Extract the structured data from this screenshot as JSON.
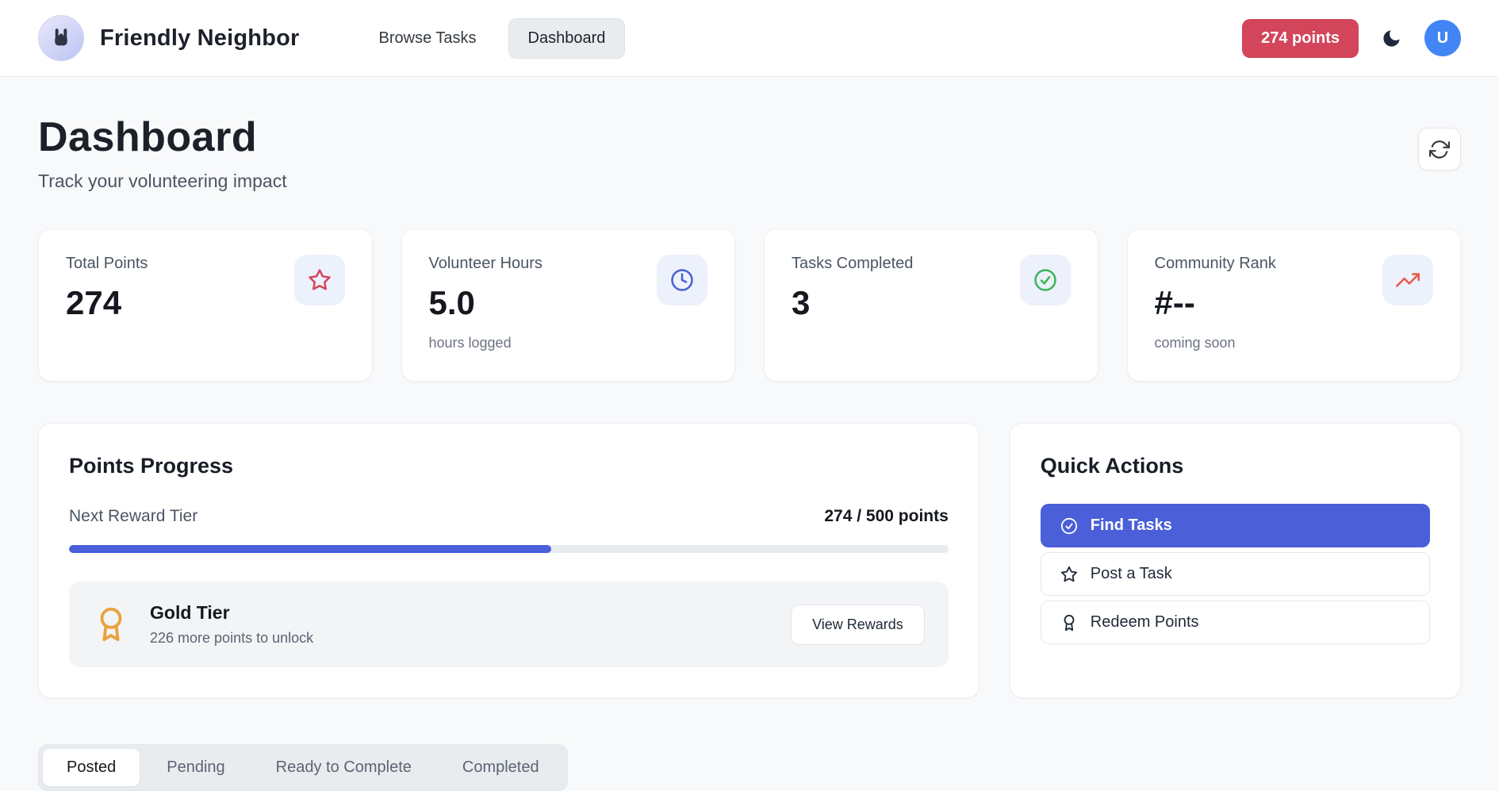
{
  "header": {
    "brand": "Friendly Neighbor",
    "logo_icon": "rock-hand",
    "nav": [
      {
        "label": "Browse Tasks",
        "active": false
      },
      {
        "label": "Dashboard",
        "active": true
      }
    ],
    "points_badge": "274 points",
    "theme_toggle_icon": "moon",
    "avatar_initial": "U"
  },
  "page": {
    "title": "Dashboard",
    "subtitle": "Track your volunteering impact",
    "refresh_icon": "refresh"
  },
  "stats": [
    {
      "label": "Total Points",
      "value": "274",
      "sub": "",
      "icon": "star-icon"
    },
    {
      "label": "Volunteer Hours",
      "value": "5.0",
      "sub": "hours logged",
      "icon": "clock-icon"
    },
    {
      "label": "Tasks Completed",
      "value": "3",
      "sub": "",
      "icon": "check-circle-icon"
    },
    {
      "label": "Community Rank",
      "value": "#--",
      "sub": "coming soon",
      "icon": "trending-up-icon"
    }
  ],
  "points_progress": {
    "title": "Points Progress",
    "tier_label": "Next Reward Tier",
    "points_text": "274 / 500 points",
    "points_current": 274,
    "points_target": 500,
    "progress_percent": 54.8,
    "reward": {
      "icon": "award-icon",
      "name": "Gold Tier",
      "subtitle": "226 more points to unlock",
      "button_label": "View Rewards"
    }
  },
  "quick_actions": {
    "title": "Quick Actions",
    "actions": [
      {
        "label": "Find Tasks",
        "icon": "check-circle-icon",
        "primary": true
      },
      {
        "label": "Post a Task",
        "icon": "star-icon",
        "primary": false
      },
      {
        "label": "Redeem Points",
        "icon": "award-icon",
        "primary": false
      }
    ]
  },
  "tabs": [
    {
      "label": "Posted",
      "active": true
    },
    {
      "label": "Pending",
      "active": false
    },
    {
      "label": "Ready to Complete",
      "active": false
    },
    {
      "label": "Completed",
      "active": false
    }
  ],
  "colors": {
    "accent_blue": "#4a5fd8",
    "badge_red": "#d3455b",
    "avatar_blue": "#4285f4",
    "success_green": "#3bb558",
    "rank_coral": "#e8594b",
    "award_amber": "#e9a23b",
    "page_bg": "#f8f9fa"
  }
}
